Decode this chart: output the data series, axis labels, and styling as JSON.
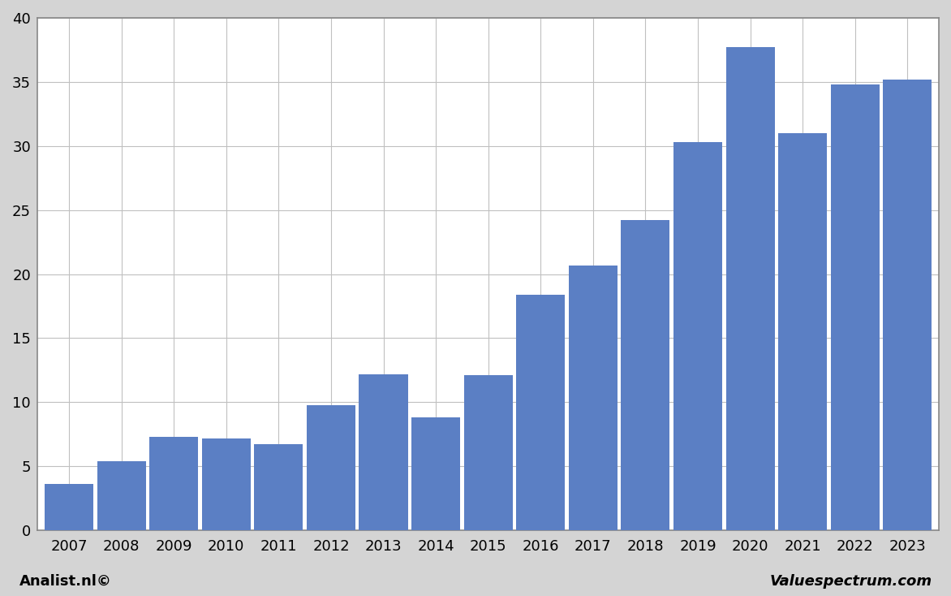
{
  "categories": [
    "2007",
    "2008",
    "2009",
    "2010",
    "2011",
    "2012",
    "2013",
    "2014",
    "2015",
    "2016",
    "2017",
    "2018",
    "2019",
    "2020",
    "2021",
    "2022",
    "2023"
  ],
  "values": [
    3.6,
    5.4,
    7.3,
    7.2,
    6.7,
    9.8,
    12.2,
    8.8,
    12.1,
    18.4,
    20.7,
    24.2,
    30.3,
    37.7,
    31.0,
    34.8,
    35.2
  ],
  "bar_color": "#5b7fc4",
  "ylim": [
    0,
    40
  ],
  "yticks": [
    0,
    5,
    10,
    15,
    20,
    25,
    30,
    35,
    40
  ],
  "background_color": "#d4d4d4",
  "plot_background": "#ffffff",
  "footer_left": "Analist.nl©",
  "footer_right": "Valuespectrum.com",
  "grid_color": "#c0c0c0",
  "border_color": "#888888"
}
